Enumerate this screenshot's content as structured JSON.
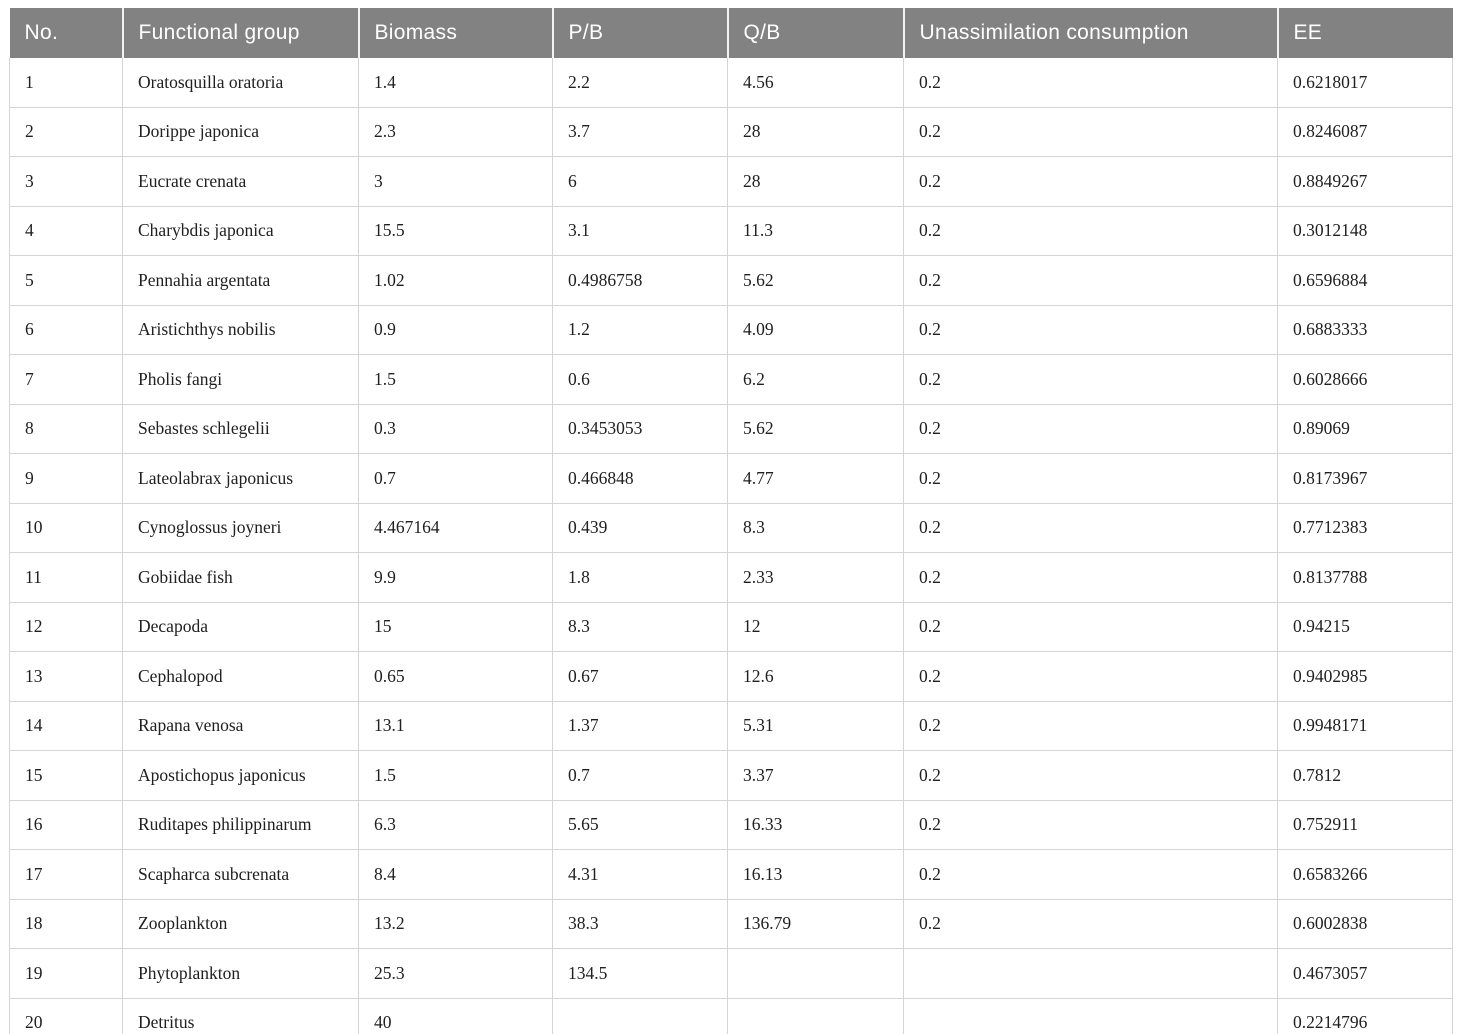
{
  "table": {
    "headers": [
      "No.",
      "Functional group",
      "Biomass",
      "P/B",
      "Q/B",
      "Unassimilation consumption",
      "EE"
    ],
    "rows": [
      [
        "1",
        "Oratosquilla oratoria",
        "1.4",
        "2.2",
        "4.56",
        "0.2",
        "0.6218017"
      ],
      [
        "2",
        "Dorippe japonica",
        "2.3",
        "3.7",
        "28",
        "0.2",
        "0.8246087"
      ],
      [
        "3",
        "Eucrate crenata",
        "3",
        "6",
        "28",
        "0.2",
        "0.8849267"
      ],
      [
        "4",
        "Charybdis japonica",
        "15.5",
        "3.1",
        "11.3",
        "0.2",
        "0.3012148"
      ],
      [
        "5",
        "Pennahia argentata",
        "1.02",
        "0.4986758",
        "5.62",
        "0.2",
        "0.6596884"
      ],
      [
        "6",
        "Aristichthys nobilis",
        "0.9",
        "1.2",
        "4.09",
        "0.2",
        "0.6883333"
      ],
      [
        "7",
        "Pholis fangi",
        "1.5",
        "0.6",
        "6.2",
        "0.2",
        "0.6028666"
      ],
      [
        "8",
        "Sebastes schlegelii",
        "0.3",
        "0.3453053",
        "5.62",
        "0.2",
        "0.89069"
      ],
      [
        "9",
        "Lateolabrax japonicus",
        "0.7",
        "0.466848",
        "4.77",
        "0.2",
        "0.8173967"
      ],
      [
        "10",
        "Cynoglossus joyneri",
        "4.467164",
        "0.439",
        "8.3",
        "0.2",
        "0.7712383"
      ],
      [
        "11",
        "Gobiidae fish",
        "9.9",
        "1.8",
        "2.33",
        "0.2",
        "0.8137788"
      ],
      [
        "12",
        "Decapoda",
        "15",
        "8.3",
        "12",
        "0.2",
        "0.94215"
      ],
      [
        "13",
        "Cephalopod",
        "0.65",
        "0.67",
        "12.6",
        "0.2",
        "0.9402985"
      ],
      [
        "14",
        "Rapana venosa",
        "13.1",
        "1.37",
        "5.31",
        "0.2",
        "0.9948171"
      ],
      [
        "15",
        "Apostichopus japonicus",
        "1.5",
        "0.7",
        "3.37",
        "0.2",
        "0.7812"
      ],
      [
        "16",
        "Ruditapes philippinarum",
        "6.3",
        "5.65",
        "16.33",
        "0.2",
        "0.752911"
      ],
      [
        "17",
        "Scapharca subcrenata",
        "8.4",
        "4.31",
        "16.13",
        "0.2",
        "0.6583266"
      ],
      [
        "18",
        "Zooplankton",
        "13.2",
        "38.3",
        "136.79",
        "0.2",
        "0.6002838"
      ],
      [
        "19",
        "Phytoplankton",
        "25.3",
        "134.5",
        "",
        "",
        "0.4673057"
      ],
      [
        "20",
        "Detritus",
        "40",
        "",
        "",
        "",
        "0.2214796"
      ]
    ]
  },
  "colors": {
    "header_bg": "#828282",
    "header_text": "#ffffff",
    "body_text": "#202020",
    "grid_line": "#d4d4d4",
    "bottom_border": "#a9a9a9"
  }
}
